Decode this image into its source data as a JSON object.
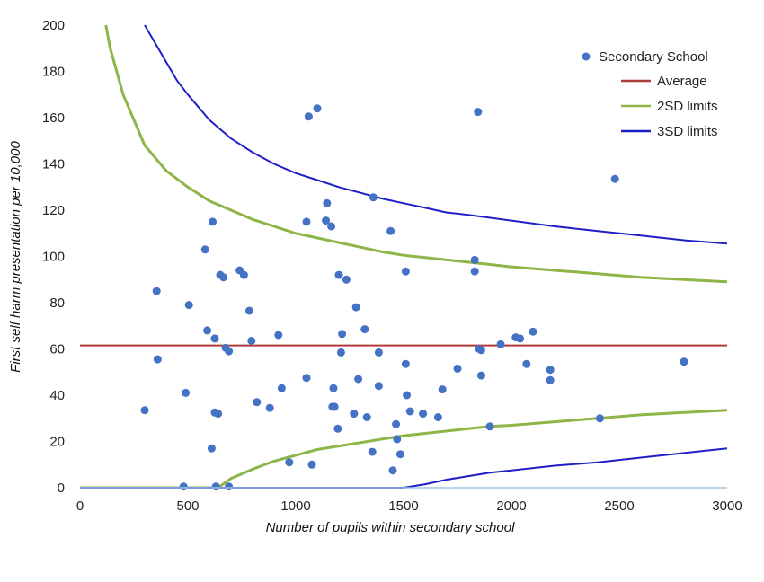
{
  "chart_data": {
    "type": "scatter",
    "xlabel": "Number of pupils within secondary school",
    "ylabel": "First self harm presentation per 10,000",
    "xlim": [
      0,
      3000
    ],
    "ylim": [
      0,
      200
    ],
    "x_ticks": [
      0,
      500,
      1000,
      1500,
      2000,
      2500,
      3000
    ],
    "y_ticks": [
      0,
      20,
      40,
      60,
      80,
      100,
      120,
      140,
      160,
      180,
      200
    ],
    "grid": false,
    "legend_position": "top-right",
    "legend": [
      {
        "label": "Secondary School",
        "kind": "marker",
        "color": "#4472C4"
      },
      {
        "label": "Average",
        "kind": "line",
        "color": "#B03A3A"
      },
      {
        "label": "2SD limits",
        "kind": "line",
        "color": "#8DB548"
      },
      {
        "label": "3SD limits",
        "kind": "line",
        "color": "#1F1FC8"
      }
    ],
    "colors": {
      "points": "#4472C4",
      "average": "#B03A3A",
      "limit_2sd": "#8DB548",
      "limit_3sd": "#1F1FC8",
      "baseline": "#9DC3E6",
      "axis": "#888888"
    },
    "average": 61.5,
    "lines": {
      "upper_2sd": [
        [
          120,
          200
        ],
        [
          140,
          190
        ],
        [
          170,
          180
        ],
        [
          200,
          170
        ],
        [
          250,
          159
        ],
        [
          300,
          148
        ],
        [
          400,
          137
        ],
        [
          500,
          130
        ],
        [
          600,
          124
        ],
        [
          700,
          120
        ],
        [
          800,
          116
        ],
        [
          900,
          113
        ],
        [
          1000,
          110
        ],
        [
          1100,
          108
        ],
        [
          1200,
          106
        ],
        [
          1300,
          104
        ],
        [
          1400,
          102
        ],
        [
          1500,
          100.5
        ],
        [
          1600,
          99.5
        ],
        [
          1700,
          98.5
        ],
        [
          1800,
          97.5
        ],
        [
          2000,
          95.5
        ],
        [
          2200,
          94
        ],
        [
          2400,
          92.5
        ],
        [
          2600,
          91
        ],
        [
          2800,
          90
        ],
        [
          3000,
          89
        ]
      ],
      "upper_3sd": [
        [
          300,
          200
        ],
        [
          350,
          192
        ],
        [
          400,
          184
        ],
        [
          450,
          176
        ],
        [
          500,
          170
        ],
        [
          600,
          159
        ],
        [
          700,
          151
        ],
        [
          800,
          145
        ],
        [
          900,
          140
        ],
        [
          1000,
          136
        ],
        [
          1100,
          133
        ],
        [
          1200,
          130
        ],
        [
          1300,
          127.5
        ],
        [
          1400,
          125
        ],
        [
          1500,
          123
        ],
        [
          1600,
          121
        ],
        [
          1700,
          119
        ],
        [
          1800,
          118
        ],
        [
          2000,
          115.5
        ],
        [
          2200,
          113
        ],
        [
          2400,
          111
        ],
        [
          2600,
          109
        ],
        [
          2800,
          107
        ],
        [
          3000,
          105.5
        ]
      ],
      "lower_2sd": [
        [
          0,
          0
        ],
        [
          640,
          0
        ],
        [
          700,
          4
        ],
        [
          800,
          8
        ],
        [
          900,
          11.5
        ],
        [
          1000,
          14
        ],
        [
          1100,
          16.5
        ],
        [
          1200,
          18
        ],
        [
          1300,
          19.5
        ],
        [
          1400,
          21
        ],
        [
          1500,
          22.5
        ],
        [
          1600,
          23.5
        ],
        [
          1700,
          24.5
        ],
        [
          1800,
          25.5
        ],
        [
          1900,
          26.5
        ],
        [
          2000,
          27
        ],
        [
          2200,
          28.5
        ],
        [
          2400,
          30
        ],
        [
          2600,
          31.5
        ],
        [
          2800,
          32.5
        ],
        [
          3000,
          33.5
        ]
      ],
      "lower_3sd": [
        [
          0,
          0
        ],
        [
          1500,
          0
        ],
        [
          1600,
          1.5
        ],
        [
          1700,
          3.5
        ],
        [
          1800,
          5
        ],
        [
          1900,
          6.5
        ],
        [
          2000,
          7.5
        ],
        [
          2200,
          9.5
        ],
        [
          2400,
          11
        ],
        [
          2600,
          13
        ],
        [
          2800,
          15
        ],
        [
          3000,
          17
        ]
      ]
    },
    "points": [
      [
        300,
        33.5
      ],
      [
        355,
        85
      ],
      [
        360,
        55.5
      ],
      [
        480,
        0.5
      ],
      [
        490,
        41
      ],
      [
        505,
        79
      ],
      [
        580,
        103
      ],
      [
        590,
        68
      ],
      [
        610,
        17
      ],
      [
        615,
        115
      ],
      [
        625,
        64.5
      ],
      [
        625,
        32.5
      ],
      [
        630,
        0.5
      ],
      [
        640,
        32
      ],
      [
        650,
        92
      ],
      [
        665,
        91
      ],
      [
        675,
        60.5
      ],
      [
        690,
        0.5
      ],
      [
        690,
        59
      ],
      [
        740,
        94
      ],
      [
        760,
        92
      ],
      [
        785,
        76.5
      ],
      [
        795,
        63.5
      ],
      [
        820,
        37
      ],
      [
        880,
        34.5
      ],
      [
        920,
        66
      ],
      [
        935,
        43
      ],
      [
        970,
        11
      ],
      [
        1050,
        47.5
      ],
      [
        1050,
        115
      ],
      [
        1060,
        160.5
      ],
      [
        1075,
        10
      ],
      [
        1100,
        164
      ],
      [
        1140,
        115.5
      ],
      [
        1145,
        123
      ],
      [
        1165,
        113
      ],
      [
        1170,
        35
      ],
      [
        1175,
        43
      ],
      [
        1180,
        35
      ],
      [
        1195,
        25.5
      ],
      [
        1200,
        92
      ],
      [
        1210,
        58.5
      ],
      [
        1215,
        66.5
      ],
      [
        1235,
        90
      ],
      [
        1270,
        32
      ],
      [
        1280,
        78
      ],
      [
        1290,
        47
      ],
      [
        1320,
        68.5
      ],
      [
        1330,
        30.5
      ],
      [
        1355,
        15.5
      ],
      [
        1360,
        125.5
      ],
      [
        1385,
        58.5
      ],
      [
        1385,
        44
      ],
      [
        1440,
        111
      ],
      [
        1450,
        7.5
      ],
      [
        1465,
        27.5
      ],
      [
        1470,
        21
      ],
      [
        1485,
        14.5
      ],
      [
        1510,
        93.5
      ],
      [
        1510,
        53.5
      ],
      [
        1515,
        40
      ],
      [
        1530,
        33
      ],
      [
        1590,
        32
      ],
      [
        1660,
        30.5
      ],
      [
        1680,
        42.5
      ],
      [
        1750,
        51.5
      ],
      [
        1830,
        98.5
      ],
      [
        1830,
        93.5
      ],
      [
        1845,
        162.5
      ],
      [
        1850,
        60
      ],
      [
        1860,
        59.5
      ],
      [
        1860,
        48.5
      ],
      [
        1900,
        26.5
      ],
      [
        1950,
        62
      ],
      [
        2020,
        65
      ],
      [
        2040,
        64.5
      ],
      [
        2070,
        53.5
      ],
      [
        2100,
        67.5
      ],
      [
        2180,
        51
      ],
      [
        2180,
        46.5
      ],
      [
        2410,
        30
      ],
      [
        2480,
        133.5
      ],
      [
        2800,
        54.5
      ]
    ]
  }
}
